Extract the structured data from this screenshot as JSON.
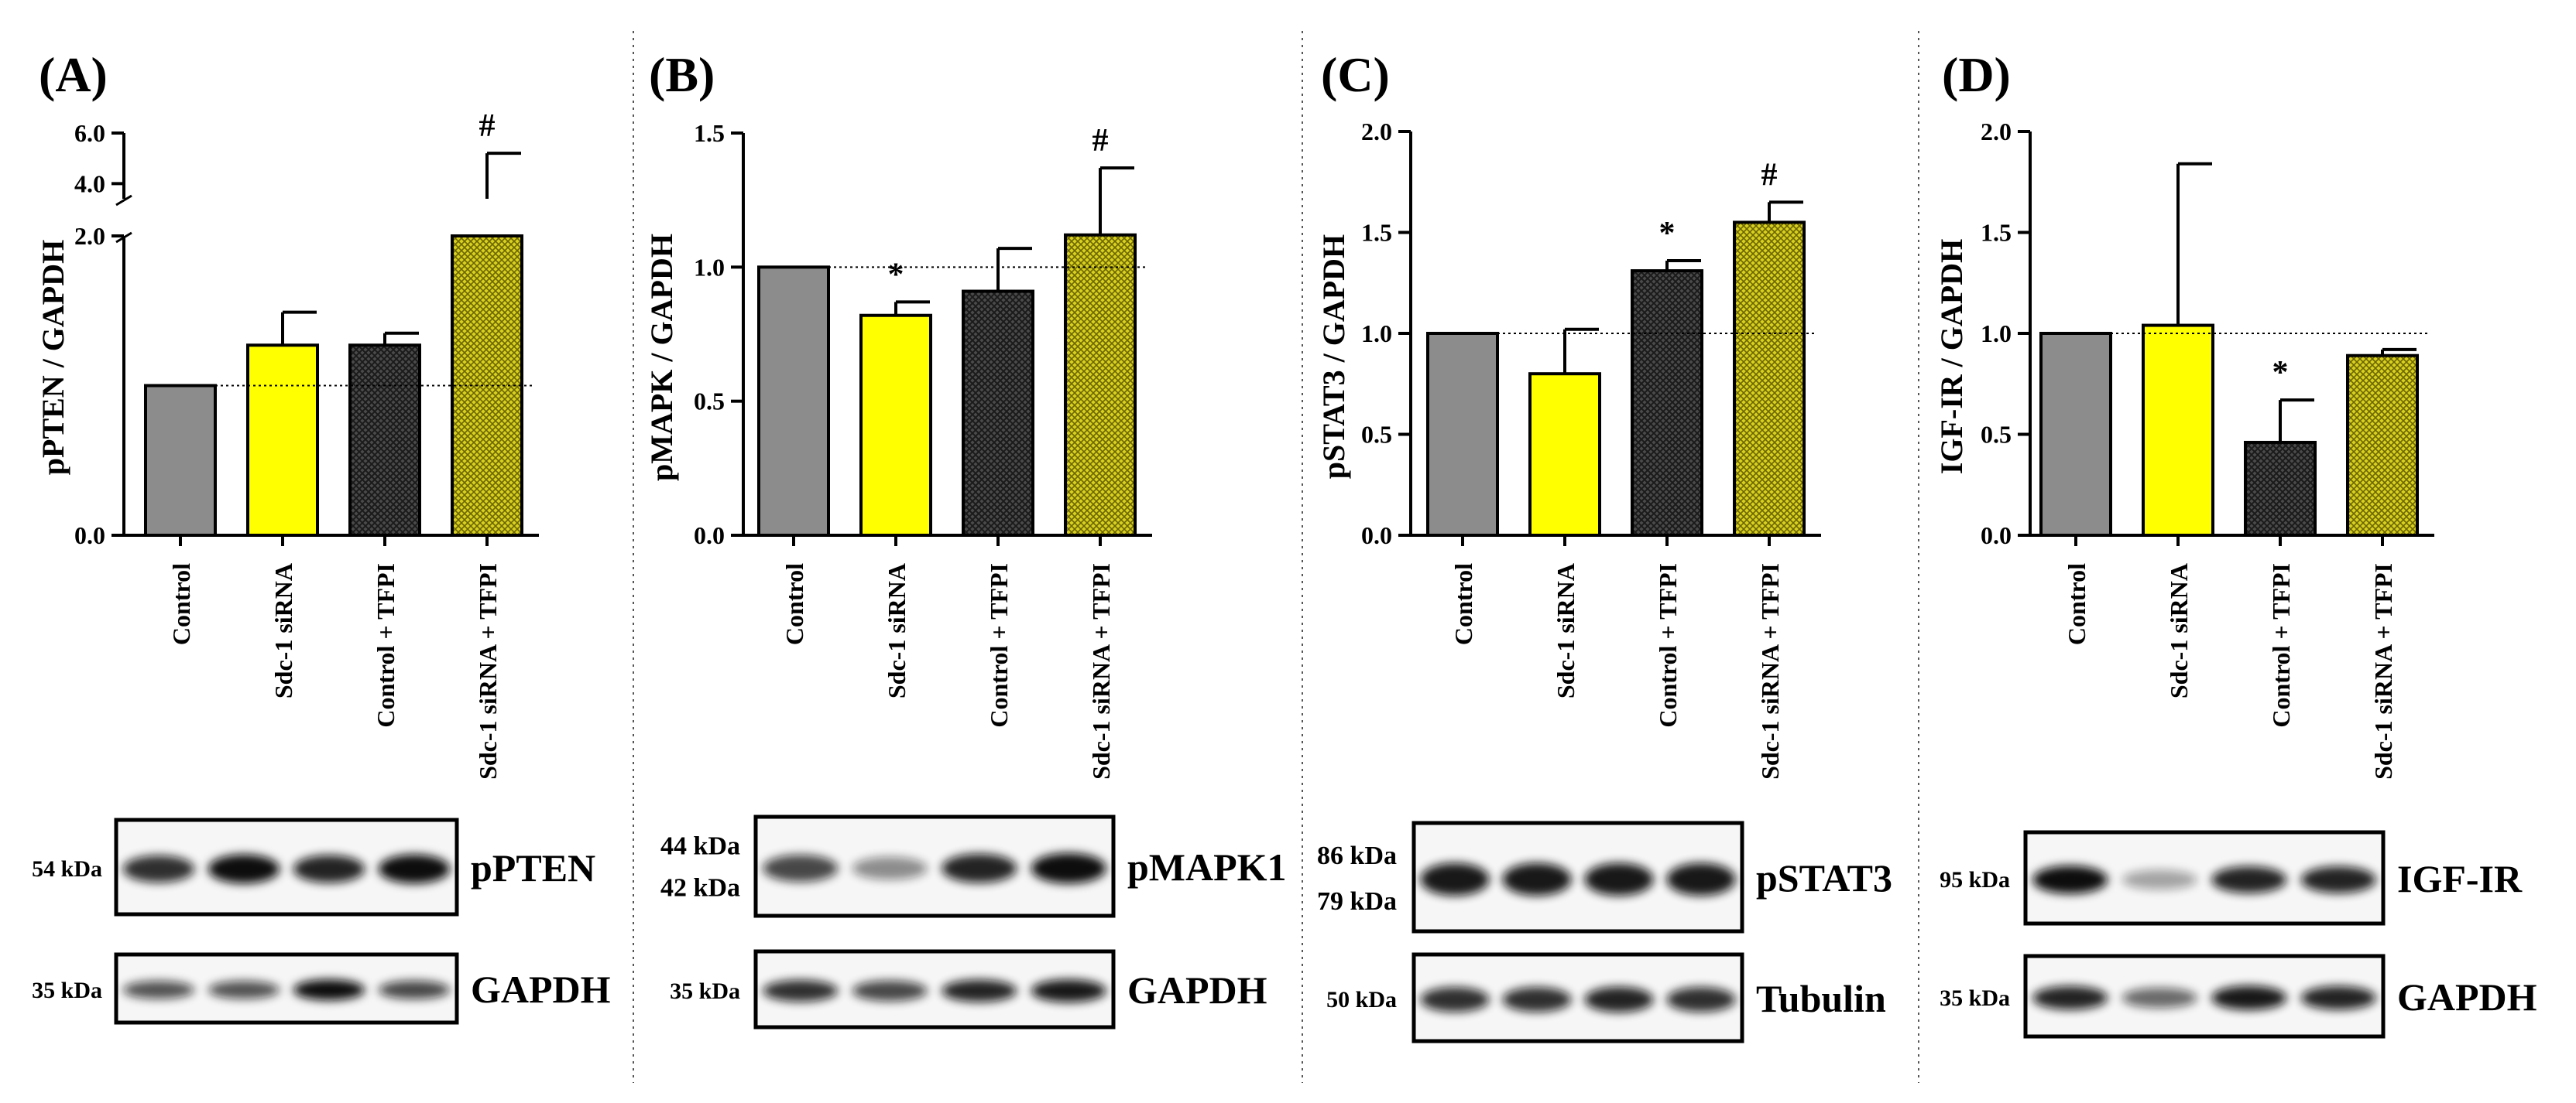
{
  "chart_data": [
    {
      "type": "bar",
      "panel_label": "(A)",
      "ylabel": "pPTEN / GAPDH",
      "categories": [
        "Control",
        "Sdc-1 siRNA",
        "Control + TFPI",
        "Sdc-1 siRNA + TFPI"
      ],
      "values": [
        1.0,
        1.27,
        1.27,
        3.3
      ],
      "errors": [
        0.0,
        0.22,
        0.08,
        1.9
      ],
      "significance": [
        "",
        "",
        "",
        "#"
      ],
      "ylim": [
        0,
        6.0
      ],
      "axis_break": [
        2.0,
        3.4
      ],
      "yticks": [
        "0.0",
        "2.0",
        "4.0",
        "6.0"
      ],
      "reference_line": 1.0,
      "blots": [
        {
          "protein": "pPTEN",
          "kda": [
            "54 kDa"
          ]
        },
        {
          "protein": "GAPDH",
          "kda": [
            "35 kDa"
          ]
        }
      ]
    },
    {
      "type": "bar",
      "panel_label": "(B)",
      "ylabel": "pMAPK / GAPDH",
      "categories": [
        "Control",
        "Sdc-1 siRNA",
        "Control + TFPI",
        "Sdc-1 siRNA + TFPI"
      ],
      "values": [
        1.0,
        0.82,
        0.91,
        1.12
      ],
      "errors": [
        0.0,
        0.05,
        0.16,
        0.25
      ],
      "significance": [
        "",
        "*",
        "",
        "#"
      ],
      "ylim": [
        0,
        1.5
      ],
      "yticks": [
        "0.0",
        "0.5",
        "1.0",
        "1.5"
      ],
      "reference_line": 1.0,
      "blots": [
        {
          "protein": "pMAPK1",
          "kda": [
            "44 kDa",
            "42 kDa"
          ]
        },
        {
          "protein": "GAPDH",
          "kda": [
            "35  kDa"
          ]
        }
      ]
    },
    {
      "type": "bar",
      "panel_label": "(C)",
      "ylabel": "pSTAT3 / GAPDH",
      "categories": [
        "Control",
        "Sdc-1 siRNA",
        "Control + TFPI",
        "Sdc-1 siRNA + TFPI"
      ],
      "values": [
        1.0,
        0.8,
        1.31,
        1.55
      ],
      "errors": [
        0.0,
        0.22,
        0.05,
        0.1
      ],
      "significance": [
        "",
        "",
        "*",
        "#"
      ],
      "ylim": [
        0,
        2.0
      ],
      "yticks": [
        "0.0",
        "0.5",
        "1.0",
        "1.5",
        "2.0"
      ],
      "reference_line": 1.0,
      "blots": [
        {
          "protein": "pSTAT3",
          "kda": [
            "86 kDa",
            "79 kDa"
          ]
        },
        {
          "protein": "Tubulin",
          "kda": [
            "50  kDa"
          ]
        }
      ]
    },
    {
      "type": "bar",
      "panel_label": "(D)",
      "ylabel": "IGF-IR / GAPDH",
      "categories": [
        "Control",
        "Sdc-1 siRNA",
        "Control + TFPI",
        "Sdc-1 siRNA + TFPI"
      ],
      "values": [
        1.0,
        1.04,
        0.46,
        0.89
      ],
      "errors": [
        0.0,
        0.8,
        0.21,
        0.03
      ],
      "significance": [
        "",
        "",
        "*",
        ""
      ],
      "ylim": [
        0,
        2.0
      ],
      "yticks": [
        "0.0",
        "0.5",
        "1.0",
        "1.5",
        "2.0"
      ],
      "reference_line": 1.0,
      "blots": [
        {
          "protein": "IGF-IR",
          "kda": [
            "95 kDa"
          ]
        },
        {
          "protein": "GAPDH",
          "kda": [
            "35 kDa"
          ]
        }
      ]
    }
  ],
  "bar_colors": [
    "#8c8c8c",
    "#ffff00",
    "#3a3a3a",
    "#d4cc1a"
  ],
  "bar_patterns": [
    "solid",
    "solid",
    "crosshatch-dark",
    "crosshatch-yellow"
  ],
  "band_intensities": [
    [
      [
        0.85,
        1.0,
        0.9,
        1.0
      ],
      [
        0.7,
        0.7,
        1.0,
        0.75
      ]
    ],
    [
      [
        0.75,
        0.45,
        0.9,
        1.0
      ],
      [
        0.85,
        0.75,
        0.9,
        0.95
      ]
    ],
    [
      [
        0.95,
        0.95,
        0.95,
        0.95
      ],
      [
        0.85,
        0.85,
        0.9,
        0.85
      ]
    ],
    [
      [
        1.0,
        0.35,
        0.9,
        0.9
      ],
      [
        0.9,
        0.6,
        0.95,
        0.9
      ]
    ]
  ]
}
